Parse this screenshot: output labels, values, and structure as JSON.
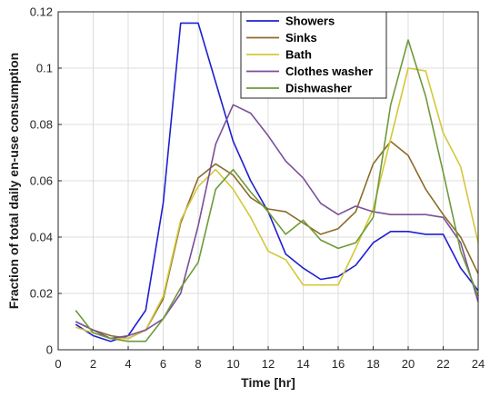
{
  "chart_data": {
    "type": "line",
    "title": "",
    "xlabel": "Time [hr]",
    "ylabel": "Fraction of total daily en-use consumption",
    "xlim": [
      0,
      24
    ],
    "ylim": [
      0,
      0.12
    ],
    "xticks": [
      0,
      2,
      4,
      6,
      8,
      10,
      12,
      14,
      16,
      18,
      20,
      22,
      24
    ],
    "yticks": [
      0,
      0.02,
      0.04,
      0.06,
      0.08,
      0.1,
      0.12
    ],
    "xtick_labels": [
      "0",
      "2",
      "4",
      "6",
      "8",
      "10",
      "12",
      "14",
      "16",
      "18",
      "20",
      "22",
      "24"
    ],
    "ytick_labels": [
      "0",
      "0.02",
      "0.04",
      "0.06",
      "0.08",
      "0.1",
      "0.12"
    ],
    "grid": true,
    "legend_position": "top-right",
    "x": [
      1,
      2,
      3,
      4,
      5,
      6,
      7,
      8,
      9,
      10,
      11,
      12,
      13,
      14,
      15,
      16,
      17,
      18,
      19,
      20,
      21,
      22,
      23,
      24
    ],
    "series": [
      {
        "name": "Showers",
        "color": "#1f1fd1",
        "values": [
          0.009,
          0.005,
          0.003,
          0.005,
          0.014,
          0.052,
          0.116,
          0.116,
          0.095,
          0.074,
          0.06,
          0.049,
          0.034,
          0.029,
          0.025,
          0.026,
          0.03,
          0.038,
          0.042,
          0.042,
          0.041,
          0.041,
          0.029,
          0.021
        ]
      },
      {
        "name": "Sinks",
        "color": "#8b6b2a",
        "values": [
          0.01,
          0.007,
          0.005,
          0.004,
          0.007,
          0.018,
          0.045,
          0.061,
          0.066,
          0.062,
          0.054,
          0.05,
          0.049,
          0.045,
          0.041,
          0.043,
          0.049,
          0.066,
          0.074,
          0.069,
          0.057,
          0.048,
          0.04,
          0.027
        ]
      },
      {
        "name": "Bath",
        "color": "#d4c83a",
        "values": [
          0.008,
          0.006,
          0.004,
          0.004,
          0.007,
          0.019,
          0.046,
          0.058,
          0.064,
          0.057,
          0.047,
          0.035,
          0.032,
          0.023,
          0.023,
          0.023,
          0.036,
          0.05,
          0.075,
          0.1,
          0.099,
          0.077,
          0.065,
          0.038
        ]
      },
      {
        "name": "Clothes washer",
        "color": "#7a4f9a",
        "values": [
          0.01,
          0.007,
          0.004,
          0.005,
          0.007,
          0.011,
          0.02,
          0.044,
          0.073,
          0.087,
          0.084,
          0.076,
          0.067,
          0.061,
          0.052,
          0.048,
          0.051,
          0.049,
          0.048,
          0.048,
          0.048,
          0.047,
          0.038,
          0.017
        ]
      },
      {
        "name": "Dishwasher",
        "color": "#6f9a3a",
        "values": [
          0.014,
          0.006,
          0.004,
          0.003,
          0.003,
          0.011,
          0.022,
          0.031,
          0.057,
          0.064,
          0.056,
          0.049,
          0.041,
          0.046,
          0.039,
          0.036,
          0.038,
          0.047,
          0.087,
          0.11,
          0.09,
          0.063,
          0.035,
          0.019
        ]
      }
    ]
  }
}
